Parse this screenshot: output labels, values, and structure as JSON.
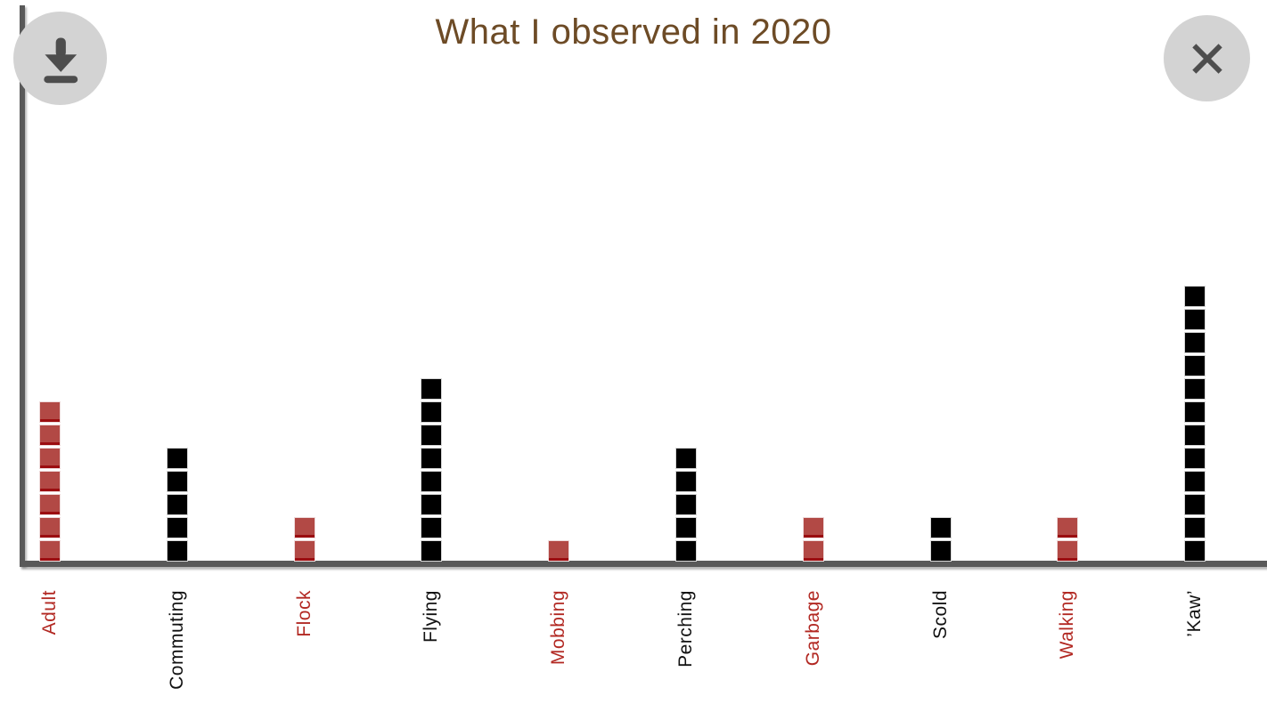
{
  "title": "What I observed in 2020",
  "buttons": {
    "download": {
      "icon": "download-icon"
    },
    "close": {
      "icon": "close-icon"
    }
  },
  "colors": {
    "title_text": "#6d4b26",
    "axis": "#595959",
    "button_background": "#d3d3d3",
    "button_glyph": "#4d4d4d",
    "red_square_fill": "#b24945",
    "red_square_border": "#9b0d10",
    "black_square_fill": "#000000",
    "red_label_text": "#b22822",
    "black_label_text": "#111111"
  },
  "chart_data": {
    "type": "bar",
    "subtype": "unit-square-pictograph",
    "title": "What I observed in 2020",
    "xlabel": "",
    "ylabel": "",
    "grid": false,
    "legend": false,
    "orientation": "vertical",
    "x_tick_label_rotation_deg": 90,
    "categories": [
      "Adult",
      "Commuting",
      "Flock",
      "Flying",
      "Mobbing",
      "Perching",
      "Garbage",
      "Scold",
      "Walking",
      "’Kaw’"
    ],
    "values": [
      7,
      5,
      2,
      8,
      1,
      5,
      2,
      2,
      2,
      12
    ],
    "palette": [
      "red",
      "black",
      "red",
      "black",
      "red",
      "black",
      "red",
      "black",
      "red",
      "black"
    ],
    "ylim": [
      0,
      12
    ]
  }
}
